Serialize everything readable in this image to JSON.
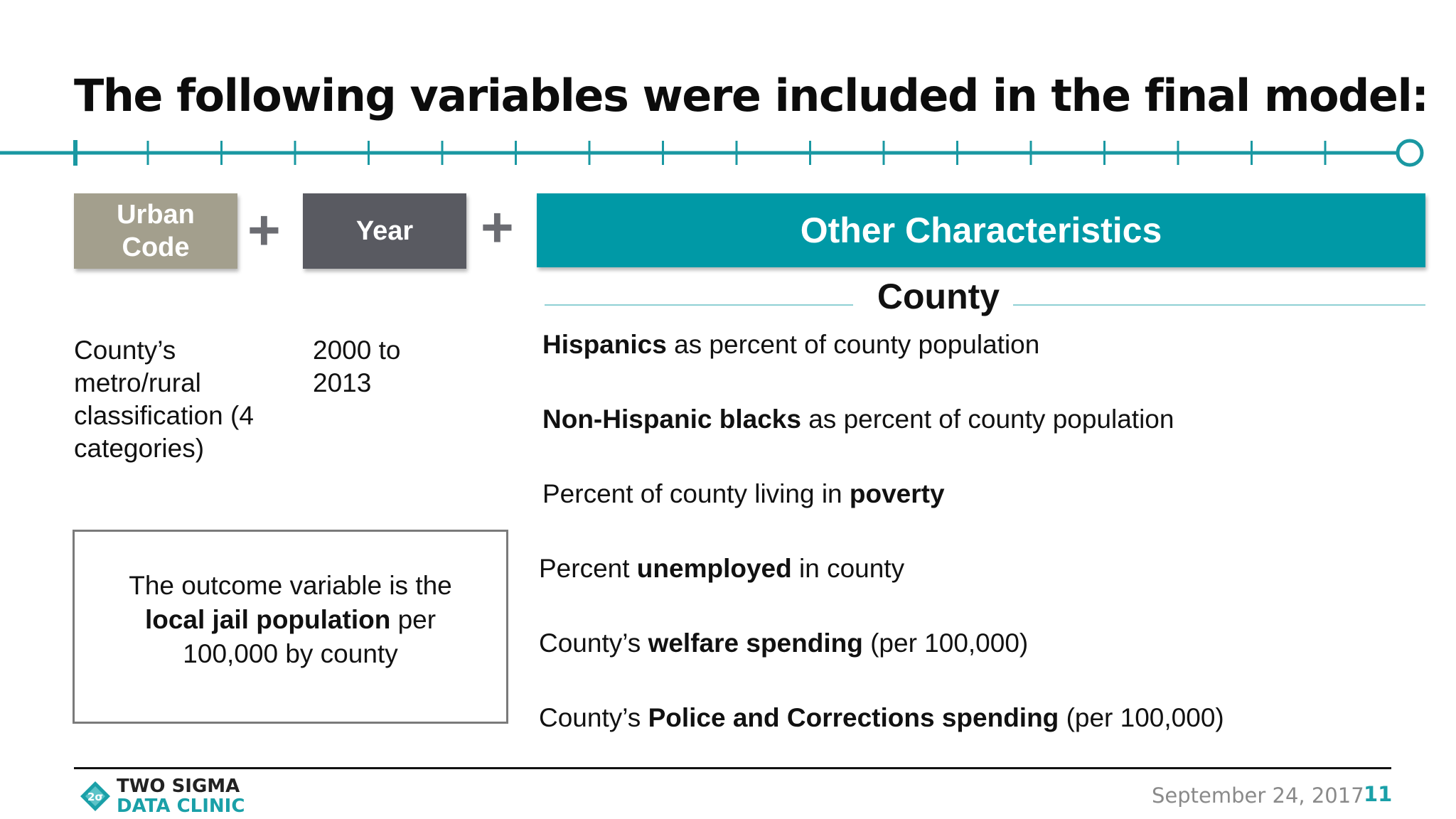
{
  "title": "The following variables were included in the final model:",
  "boxes": {
    "urban": "Urban Code",
    "year": "Year",
    "other": "Other Characteristics"
  },
  "plus_symbol": "+",
  "county_heading": "County",
  "urban_desc": "County’s metro/rural classification (4 categories)",
  "year_desc": "2000 to 2013",
  "outcome": {
    "prefix": "The outcome variable is the",
    "bold": "local jail population",
    "suffix": "per 100,000 by county"
  },
  "county_vars": [
    {
      "before": "",
      "bold": "Hispanics",
      "after": " as percent of county population"
    },
    {
      "before": "",
      "bold": "Non-Hispanic blacks",
      "after": " as percent of county population"
    },
    {
      "before": "Percent of county living in ",
      "bold": "poverty",
      "after": ""
    },
    {
      "before": "Percent ",
      "bold": "unemployed",
      "after": " in county"
    },
    {
      "before": "County’s ",
      "bold": "welfare spending",
      "after": " (per 100,000)"
    },
    {
      "before": "County’s ",
      "bold": "Police and Corrections spending",
      "after": " (per 100,000)"
    }
  ],
  "footer": {
    "logo_line1": "TWO SIGMA",
    "logo_line2": "DATA CLINIC",
    "logo_glyph": "2σ",
    "date": "September 24, 2017",
    "page": "11"
  },
  "colors": {
    "teal": "#0099a6",
    "urban_box": "#a39f8d",
    "year_box": "#595a61"
  }
}
